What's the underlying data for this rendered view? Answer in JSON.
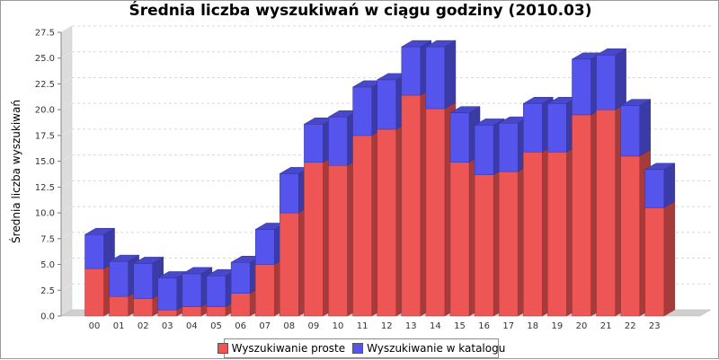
{
  "chart_data": {
    "type": "bar",
    "stacked": true,
    "style": "3d",
    "title": "Średnia liczba wyszukiwań w ciągu godziny (2010.03)",
    "xlabel": "",
    "ylabel": "Średnia liczba wyszukiwań",
    "ylim": [
      0,
      27.5
    ],
    "yticks": [
      "0.0",
      "2.5",
      "5.0",
      "7.5",
      "10.0",
      "12.5",
      "15.0",
      "17.5",
      "20.0",
      "22.5",
      "25.0",
      "27.5"
    ],
    "categories": [
      "00",
      "01",
      "02",
      "03",
      "04",
      "05",
      "06",
      "07",
      "08",
      "09",
      "10",
      "11",
      "12",
      "13",
      "14",
      "15",
      "16",
      "17",
      "18",
      "19",
      "20",
      "21",
      "22",
      "23"
    ],
    "series": [
      {
        "name": "Wyszukiwanie proste",
        "color": "#ee5555",
        "values": [
          4.6,
          1.9,
          1.7,
          0.6,
          0.9,
          0.9,
          2.2,
          5.0,
          10.0,
          14.9,
          14.6,
          17.5,
          18.1,
          21.4,
          20.1,
          14.9,
          13.7,
          14.0,
          15.9,
          15.9,
          19.5,
          20.0,
          15.5,
          10.5
        ]
      },
      {
        "name": "Wyszukiwanie w katalogu",
        "color": "#5555ee",
        "values": [
          3.3,
          3.4,
          3.4,
          3.1,
          3.2,
          3.0,
          3.0,
          3.4,
          3.8,
          3.7,
          4.7,
          4.7,
          4.8,
          4.7,
          6.0,
          4.8,
          4.8,
          4.7,
          4.7,
          4.7,
          5.4,
          5.3,
          4.9,
          3.7
        ]
      }
    ],
    "grid": "horizontal-dashed",
    "legend_position": "bottom"
  }
}
